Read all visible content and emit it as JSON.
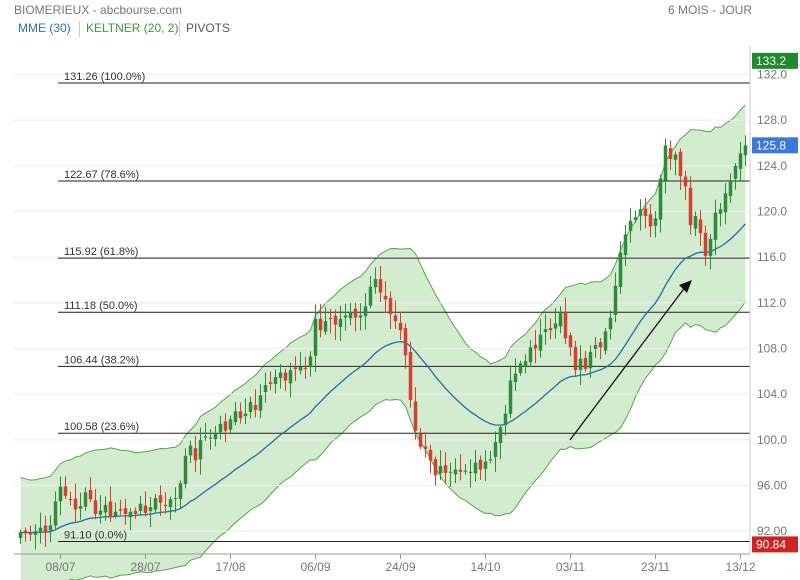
{
  "header": {
    "title": "BIOMERIEUX - abcbourse.com",
    "period": "6 MOIS - JOUR"
  },
  "indicators": [
    {
      "label": "MME (30)",
      "color": "#2a6fb0"
    },
    {
      "label": "KELTNER (20, 2)",
      "color": "#3c9a3c"
    },
    {
      "label": "PIVOTS",
      "color": "#555555"
    }
  ],
  "colors": {
    "up": "#2f8a3c",
    "down": "#d24030",
    "ema": "#1f6fa8",
    "band_fill": "#d3ecd0",
    "band_line": "#5aa14e",
    "last_price_bg": "#3b78d8",
    "high_bg": "#1f8a2e",
    "low_bg": "#cc2222"
  },
  "chart_data": {
    "type": "candlestick",
    "x_tick_labels": [
      "08/07",
      "28/07",
      "17/08",
      "06/09",
      "24/09",
      "14/10",
      "03/11",
      "23/11",
      "13/12"
    ],
    "y_tick_labels": [
      "92.00",
      "96.00",
      "100.0",
      "104.0",
      "108.0",
      "112.0",
      "116.0",
      "120.0",
      "124.0",
      "128.0",
      "132.0"
    ],
    "ylim": [
      90.0,
      133.8
    ],
    "fibonacci_levels": [
      {
        "label": "131.26 (100.0%)",
        "value": 131.26
      },
      {
        "label": "122.67 (78.6%)",
        "value": 122.67
      },
      {
        "label": "115.92 (61.8%)",
        "value": 115.92
      },
      {
        "label": "111.18 (50.0%)",
        "value": 111.18
      },
      {
        "label": "106.44 (38.2%)",
        "value": 106.44
      },
      {
        "label": "100.58 (23.6%)",
        "value": 100.58
      },
      {
        "label": "91.10 (0.0%)",
        "value": 91.1
      }
    ],
    "price_tags": {
      "high": "133.2",
      "last": "125.8",
      "low": "90.84"
    },
    "close": [
      91.9,
      91.8,
      91.7,
      92.0,
      92.3,
      91.9,
      92.5,
      94.6,
      95.9,
      95.1,
      94.8,
      93.9,
      94.2,
      95.4,
      94.8,
      93.5,
      93.8,
      94.3,
      93.2,
      93.7,
      93.8,
      93.5,
      93.7,
      93.5,
      94.4,
      93.6,
      94.1,
      94.9,
      94.5,
      94.2,
      94.8,
      94.9,
      96.2,
      98.6,
      99.5,
      98.2,
      100.0,
      100.3,
      100.2,
      100.5,
      101.4,
      100.8,
      101.8,
      102.5,
      101.9,
      102.3,
      103.3,
      102.6,
      103.9,
      104.8,
      104.9,
      105.5,
      105.9,
      105.2,
      106.1,
      106.2,
      106.4,
      106.3,
      107.3,
      110.6,
      109.6,
      110.4,
      110.6,
      110.1,
      110.6,
      110.9,
      111.2,
      110.7,
      110.9,
      111.7,
      113.4,
      114.1,
      112.9,
      112.3,
      111.0,
      110.4,
      109.6,
      107.4,
      103.5,
      100.8,
      99.4,
      99.2,
      98.2,
      96.9,
      97.7,
      97.1,
      97.2,
      97.4,
      97.2,
      97.3,
      97.2,
      98.0,
      97.4,
      98.1,
      98.3,
      99.8,
      101.1,
      102.3,
      105.2,
      105.8,
      106.7,
      106.9,
      108.1,
      108.0,
      109.2,
      109.7,
      109.6,
      110.2,
      111.1,
      108.9,
      108.1,
      106.1,
      107.1,
      106.2,
      107.7,
      108.3,
      108.1,
      109.5,
      110.7,
      113.5,
      116.4,
      118.0,
      119.2,
      119.5,
      120.2,
      119.6,
      118.7,
      119.4,
      122.9,
      125.8,
      124.6,
      125.0,
      123.1,
      122.2,
      118.8,
      119.6,
      118.1,
      116.1,
      117.6,
      119.9,
      120.2,
      121.6,
      122.6,
      124.0,
      125.1,
      125.8
    ]
  }
}
